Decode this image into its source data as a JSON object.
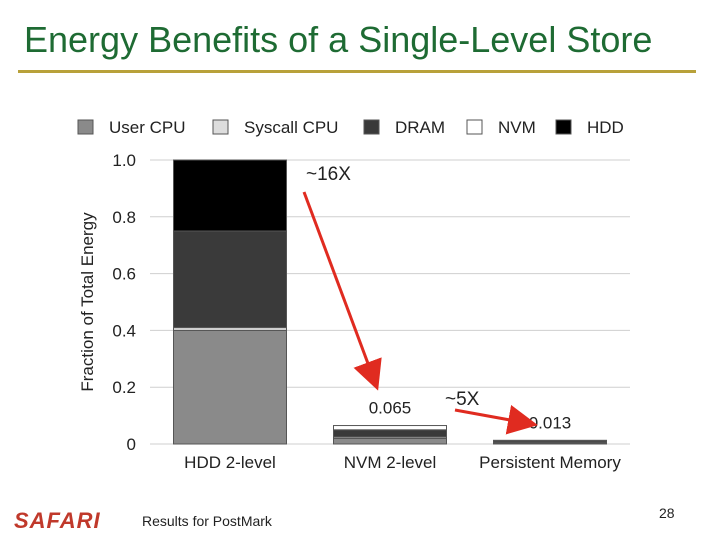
{
  "slide": {
    "title": "Energy Benefits of a Single-Level Store",
    "footer_logo": "SAFARI",
    "footer_text": "Results for PostMark",
    "page_number": "28"
  },
  "colors": {
    "title": "#1e6b33",
    "rule": "#b8a13a",
    "user_cpu": "#8a8a8a",
    "syscall_cpu": "#dddddd",
    "dram": "#3a3a3a",
    "nvm": "#ffffff",
    "hdd": "#000000",
    "arrow": "#e02b20"
  },
  "chart_data": {
    "type": "bar",
    "stacked": true,
    "categories": [
      "HDD 2-level",
      "NVM 2-level",
      "Persistent Memory"
    ],
    "ylabel": "Fraction of Total Energy",
    "ylim": [
      0,
      1.0
    ],
    "yticks": [
      "0",
      "0.2",
      "0.4",
      "0.6",
      "0.8",
      "1.0"
    ],
    "ytick_values": [
      0,
      0.2,
      0.4,
      0.6,
      0.8,
      1.0
    ],
    "grid": true,
    "legend_position": "top",
    "series": [
      {
        "name": "User CPU",
        "color_key": "user_cpu",
        "values": [
          0.4,
          0.02,
          0.004
        ]
      },
      {
        "name": "Syscall CPU",
        "color_key": "syscall_cpu",
        "values": [
          0.01,
          0.005,
          0.001
        ]
      },
      {
        "name": "DRAM",
        "color_key": "dram",
        "values": [
          0.34,
          0.025,
          0.006
        ]
      },
      {
        "name": "NVM",
        "color_key": "nvm",
        "values": [
          0.0,
          0.015,
          0.002
        ]
      },
      {
        "name": "HDD",
        "color_key": "hdd",
        "values": [
          0.25,
          0.0,
          0.0
        ]
      }
    ],
    "totals": [
      1.0,
      0.065,
      0.013
    ],
    "data_labels": [
      {
        "category": "NVM 2-level",
        "text": "0.065"
      },
      {
        "category": "Persistent Memory",
        "text": "0.013"
      }
    ],
    "annotations": [
      {
        "text": "~16X",
        "from": "HDD 2-level",
        "to": "NVM 2-level"
      },
      {
        "text": "~5X",
        "from": "NVM 2-level",
        "to": "Persistent Memory"
      }
    ]
  }
}
